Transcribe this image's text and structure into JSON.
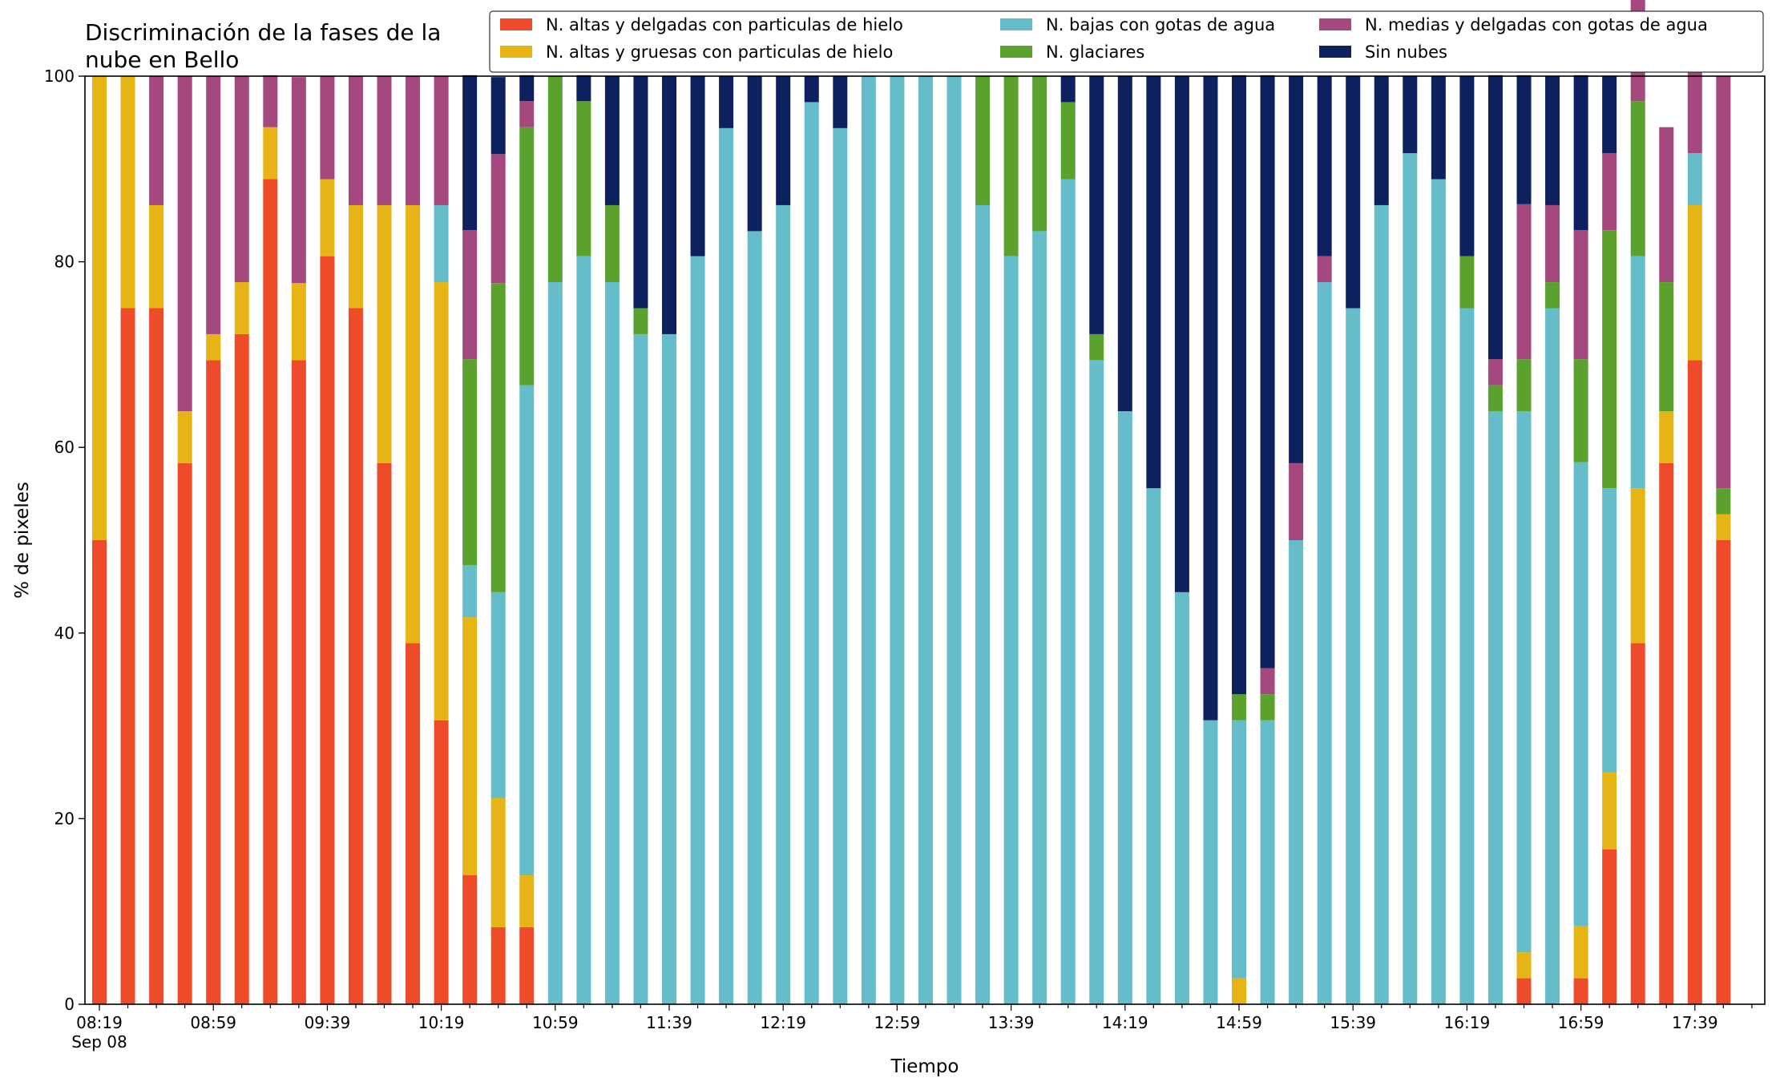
{
  "chart_data": {
    "type": "bar",
    "stacked": true,
    "title": "Discriminación de la fases de la nube en Bello",
    "title_lines": [
      "Discriminación de la fases de la",
      "nube en Bello"
    ],
    "xlabel": "Tiempo",
    "ylabel": "% de pixeles",
    "ylim": [
      0,
      100
    ],
    "y_ticks": [
      0,
      20,
      40,
      60,
      80,
      100
    ],
    "date_label": "Sep 08",
    "x_tick_labels": [
      "08:19",
      "08:59",
      "09:39",
      "10:19",
      "10:59",
      "11:39",
      "12:19",
      "12:59",
      "13:39",
      "14:19",
      "14:59",
      "15:39",
      "16:19",
      "16:59",
      "17:39"
    ],
    "categories": [
      "08:19",
      "08:29",
      "08:39",
      "08:49",
      "08:59",
      "09:09",
      "09:19",
      "09:29",
      "09:39",
      "09:49",
      "09:59",
      "10:09",
      "10:19",
      "10:29",
      "10:39",
      "10:49",
      "10:59",
      "11:09",
      "11:19",
      "11:29",
      "11:39",
      "11:49",
      "11:59",
      "12:09",
      "12:19",
      "12:29",
      "12:39",
      "12:49",
      "12:59",
      "13:09",
      "13:19",
      "13:29",
      "13:39",
      "13:49",
      "13:59",
      "14:09",
      "14:19",
      "14:29",
      "14:39",
      "14:49",
      "14:59",
      "15:09",
      "15:19",
      "15:29",
      "15:39",
      "15:49",
      "15:59",
      "16:09",
      "16:19",
      "16:29",
      "16:39",
      "16:49",
      "16:59",
      "17:09",
      "17:19",
      "17:29",
      "17:39",
      "17:49"
    ],
    "grid": false,
    "legend_position": "top-right",
    "series": [
      {
        "name": "N. altas y delgadas con particulas de hielo",
        "color": "#ee4b2b",
        "values": [
          50,
          75,
          75,
          58.3,
          69.4,
          72.2,
          88.9,
          69.4,
          80.6,
          75,
          58.3,
          38.9,
          30.6,
          13.9,
          8.3,
          8.3,
          0,
          0,
          0,
          0,
          0,
          0,
          0,
          0,
          0,
          0,
          0,
          0,
          0,
          0,
          0,
          0,
          0,
          0,
          0,
          0,
          0,
          0,
          0,
          0,
          0,
          0,
          0,
          0,
          0,
          0,
          0,
          0,
          0,
          0,
          2.8,
          0,
          2.8,
          16.7,
          38.9,
          58.3,
          69.4,
          50
        ]
      },
      {
        "name": "N. altas y gruesas con particulas de hielo",
        "color": "#e6b415",
        "values": [
          50,
          25,
          11.1,
          5.6,
          2.8,
          5.6,
          5.6,
          8.3,
          8.3,
          11.1,
          27.8,
          47.2,
          47.2,
          27.8,
          13.9,
          5.6,
          0,
          0,
          0,
          0,
          0,
          0,
          0,
          0,
          0,
          0,
          0,
          0,
          0,
          0,
          0,
          0,
          0,
          0,
          0,
          0,
          0,
          0,
          0,
          0,
          2.8,
          0,
          0,
          0,
          0,
          0,
          0,
          0,
          0,
          0,
          2.8,
          0,
          5.6,
          8.3,
          16.7,
          5.6,
          16.7,
          2.8
        ]
      },
      {
        "name": "N. bajas con gotas de agua",
        "color": "#65bdca",
        "values": [
          0,
          0,
          0,
          0,
          0,
          0,
          0,
          0,
          0,
          0,
          0,
          0,
          8.3,
          5.6,
          22.2,
          52.8,
          77.8,
          80.6,
          77.8,
          72.2,
          72.2,
          80.6,
          94.4,
          83.3,
          86.1,
          97.2,
          94.4,
          100,
          100,
          100,
          100,
          86.1,
          80.6,
          83.3,
          88.9,
          69.4,
          63.9,
          55.6,
          44.4,
          30.6,
          27.8,
          30.6,
          50,
          77.8,
          75,
          86.1,
          91.7,
          88.9,
          75,
          63.9,
          58.3,
          75,
          50,
          30.6,
          25,
          0,
          5.6,
          0
        ]
      },
      {
        "name": "N. glaciares",
        "color": "#5ba12e",
        "values": [
          0,
          0,
          0,
          0,
          0,
          0,
          0,
          0,
          0,
          0,
          0,
          0,
          0,
          22.2,
          33.3,
          27.8,
          22.2,
          16.7,
          8.3,
          2.8,
          0,
          0,
          0,
          0,
          0,
          0,
          0,
          0,
          0,
          0,
          0,
          13.9,
          19.4,
          16.7,
          8.3,
          2.8,
          0,
          0,
          0,
          0,
          2.8,
          2.8,
          0,
          0,
          0,
          0,
          0,
          0,
          5.6,
          2.8,
          5.6,
          2.8,
          11.1,
          27.8,
          16.7,
          13.9,
          0,
          2.8
        ]
      },
      {
        "name": "N. medias y delgadas con gotas de agua",
        "color": "#a5487d",
        "values": [
          0,
          0,
          13.9,
          36.1,
          27.8,
          22.2,
          5.6,
          22.2,
          11.1,
          13.9,
          13.9,
          13.9,
          13.9,
          13.9,
          13.9,
          2.8,
          0,
          0,
          0,
          0,
          0,
          0,
          0,
          0,
          0,
          0,
          0,
          0,
          0,
          0,
          0,
          0,
          0,
          0,
          0,
          0,
          0,
          0,
          0,
          0,
          0,
          2.8,
          8.3,
          2.8,
          0,
          0,
          0,
          0,
          0,
          2.8,
          16.7,
          8.3,
          13.9,
          8.3,
          11.1,
          16.7,
          13.9,
          44.4
        ]
      },
      {
        "name": "Sin nubes",
        "color": "#0d215e",
        "values": [
          0,
          0,
          0,
          0,
          0,
          0,
          0,
          0,
          0,
          0,
          0,
          0,
          0,
          16.7,
          8.3,
          2.8,
          0,
          2.8,
          13.9,
          25,
          27.8,
          19.4,
          5.6,
          16.7,
          13.9,
          2.8,
          5.6,
          0,
          0,
          0,
          0,
          0,
          0,
          0,
          2.8,
          27.8,
          36.1,
          44.4,
          55.6,
          69.4,
          66.7,
          63.9,
          41.7,
          19.4,
          25,
          13.9,
          8.3,
          11.1,
          19.4,
          30.6,
          13.9,
          13.9,
          16.7,
          8.3,
          0,
          0,
          0,
          0
        ]
      }
    ]
  }
}
